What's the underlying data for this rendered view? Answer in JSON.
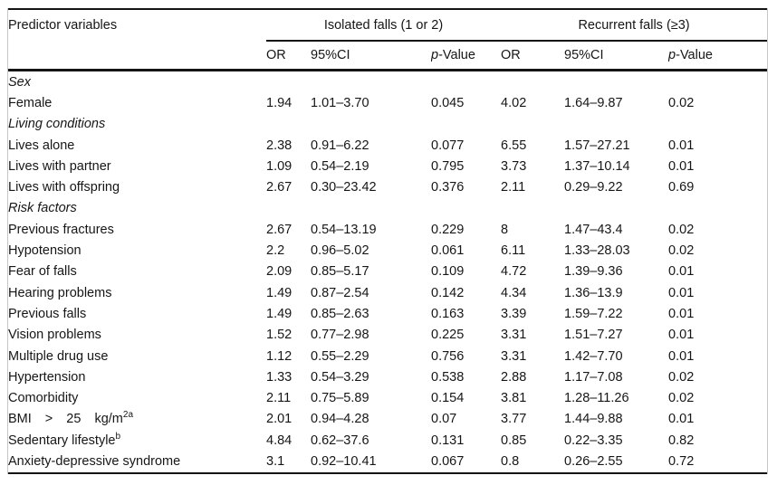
{
  "table": {
    "header": {
      "predictor_label": "Predictor variables",
      "group1_label": "Isolated falls (1 or 2)",
      "group2_label": "Recurrent falls (≥3)"
    },
    "subheaders": [
      {
        "text": "OR"
      },
      {
        "text": "95%CI"
      },
      {
        "italic_prefix": "p",
        "text": "-Value"
      },
      {
        "text": "OR"
      },
      {
        "text": "95%CI"
      },
      {
        "italic_prefix": "p",
        "text": "-Value"
      }
    ],
    "column_keys": [
      "or-isolated",
      "ci-isolated",
      "p-isolated",
      "or-recurrent",
      "ci-recurrent",
      "p-recurrent"
    ],
    "rows": [
      {
        "kind": "section",
        "label": "Sex"
      },
      {
        "kind": "item",
        "label": "Female",
        "values": [
          "1.94",
          "1.01–3.70",
          "0.045",
          "4.02",
          "1.64–9.87",
          "0.02"
        ]
      },
      {
        "kind": "section",
        "label": "Living conditions"
      },
      {
        "kind": "item",
        "label": "Lives alone",
        "values": [
          "2.38",
          "0.91–6.22",
          "0.077",
          "6.55",
          "1.57–27.21",
          "0.01"
        ]
      },
      {
        "kind": "item",
        "label": "Lives with partner",
        "values": [
          "1.09",
          "0.54–2.19",
          "0.795",
          "3.73",
          "1.37–10.14",
          "0.01"
        ]
      },
      {
        "kind": "item",
        "label": "Lives with offspring",
        "values": [
          "2.67",
          "0.30–23.42",
          "0.376",
          "2.11",
          "0.29–9.22",
          "0.69"
        ]
      },
      {
        "kind": "section",
        "label": "Risk factors"
      },
      {
        "kind": "item",
        "label": "Previous fractures",
        "values": [
          "2.67",
          "0.54–13.19",
          "0.229",
          "8",
          "1.47–43.4",
          "0.02"
        ]
      },
      {
        "kind": "item",
        "label": "Hypotension",
        "values": [
          "2.2",
          "0.96–5.02",
          "0.061",
          "6.11",
          "1.33–28.03",
          "0.02"
        ]
      },
      {
        "kind": "item",
        "label": "Fear of falls",
        "values": [
          "2.09",
          "0.85–5.17",
          "0.109",
          "4.72",
          "1.39–9.36",
          "0.01"
        ]
      },
      {
        "kind": "item",
        "label": "Hearing problems",
        "values": [
          "1.49",
          "0.87–2.54",
          "0.142",
          "4.34",
          "1.36–13.9",
          "0.01"
        ]
      },
      {
        "kind": "item",
        "label": "Previous falls",
        "values": [
          "1.49",
          "0.85–2.63",
          "0.163",
          "3.39",
          "1.59–7.22",
          "0.01"
        ]
      },
      {
        "kind": "item",
        "label": "Vision problems",
        "values": [
          "1.52",
          "0.77–2.98",
          "0.225",
          "3.31",
          "1.51–7.27",
          "0.01"
        ]
      },
      {
        "kind": "item",
        "label": "Multiple drug use",
        "values": [
          "1.12",
          "0.55–2.29",
          "0.756",
          "3.31",
          "1.42–7.70",
          "0.01"
        ]
      },
      {
        "kind": "item",
        "label": "Hypertension",
        "values": [
          "1.33",
          "0.54–3.29",
          "0.538",
          "2.88",
          "1.17–7.08",
          "0.02"
        ]
      },
      {
        "kind": "item",
        "label": "Comorbidity",
        "values": [
          "2.11",
          "0.75–5.89",
          "0.154",
          "3.81",
          "1.28–11.26",
          "0.02"
        ]
      },
      {
        "kind": "item",
        "label": "BMI > 25 kg/m",
        "sup": "2a",
        "wide": true,
        "values": [
          "2.01",
          "0.94–4.28",
          "0.07",
          "3.77",
          "1.44–9.88",
          "0.01"
        ]
      },
      {
        "kind": "item",
        "label": "Sedentary lifestyle",
        "sup": "b",
        "values": [
          "4.84",
          "0.62–37.6",
          "0.131",
          "0.85",
          "0.22–3.35",
          "0.82"
        ]
      },
      {
        "kind": "item",
        "label": "Anxiety-depressive syndrome",
        "values": [
          "3.1",
          "0.92–10.41",
          "0.067",
          "0.8",
          "0.26–2.55",
          "0.72"
        ]
      }
    ]
  },
  "colors": {
    "rule": "#141414",
    "frame_gray": "#c6c6c6",
    "text": "#161616",
    "background": "#ffffff"
  }
}
